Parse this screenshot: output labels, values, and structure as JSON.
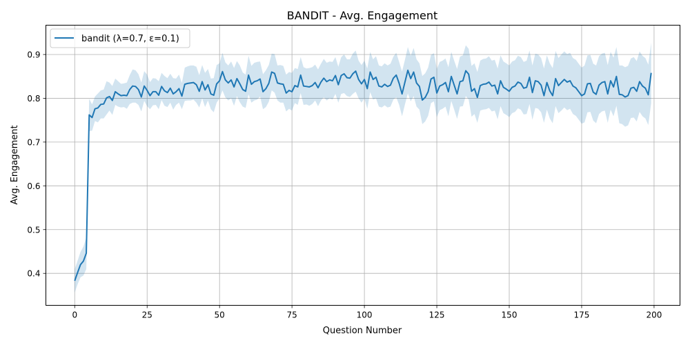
{
  "chart_data": {
    "type": "line",
    "title": "BANDIT - Avg. Engagement",
    "xlabel": "Question Number",
    "ylabel": "Avg. Engagement",
    "xlim": [
      -9.95,
      208.95
    ],
    "ylim": [
      0.327,
      0.967
    ],
    "xticks": [
      0,
      25,
      50,
      75,
      100,
      125,
      150,
      175,
      200
    ],
    "xtick_labels": [
      "0",
      "25",
      "50",
      "75",
      "100",
      "125",
      "150",
      "175",
      "200"
    ],
    "yticks": [
      0.4,
      0.5,
      0.6,
      0.7,
      0.8,
      0.9
    ],
    "ytick_labels": [
      "0.4",
      "0.5",
      "0.6",
      "0.7",
      "0.8",
      "0.9"
    ],
    "grid": true,
    "legend_position": "upper-left",
    "series": [
      {
        "name": "bandit (λ=0.7, ε=0.1)",
        "color": "#1f77b4",
        "band_color": "#1f77b4",
        "band_opacity": 0.2,
        "x_start": 0,
        "x_step": 1,
        "values": [
          0.383,
          0.402,
          0.42,
          0.428,
          0.446,
          0.762,
          0.756,
          0.776,
          0.778,
          0.786,
          0.787,
          0.801,
          0.804,
          0.795,
          0.815,
          0.81,
          0.806,
          0.807,
          0.806,
          0.82,
          0.828,
          0.827,
          0.82,
          0.803,
          0.828,
          0.818,
          0.806,
          0.815,
          0.815,
          0.807,
          0.827,
          0.817,
          0.813,
          0.823,
          0.81,
          0.815,
          0.822,
          0.805,
          0.832,
          0.834,
          0.835,
          0.836,
          0.831,
          0.816,
          0.838,
          0.819,
          0.831,
          0.81,
          0.807,
          0.833,
          0.84,
          0.861,
          0.842,
          0.835,
          0.842,
          0.826,
          0.845,
          0.833,
          0.82,
          0.816,
          0.853,
          0.832,
          0.838,
          0.84,
          0.844,
          0.815,
          0.822,
          0.834,
          0.86,
          0.857,
          0.835,
          0.833,
          0.832,
          0.812,
          0.818,
          0.815,
          0.829,
          0.826,
          0.853,
          0.828,
          0.827,
          0.826,
          0.829,
          0.836,
          0.824,
          0.837,
          0.846,
          0.838,
          0.842,
          0.84,
          0.852,
          0.831,
          0.852,
          0.856,
          0.847,
          0.846,
          0.856,
          0.862,
          0.843,
          0.833,
          0.843,
          0.822,
          0.86,
          0.843,
          0.848,
          0.828,
          0.826,
          0.832,
          0.827,
          0.83,
          0.846,
          0.853,
          0.834,
          0.81,
          0.837,
          0.864,
          0.845,
          0.86,
          0.835,
          0.827,
          0.796,
          0.802,
          0.815,
          0.844,
          0.848,
          0.812,
          0.828,
          0.831,
          0.836,
          0.815,
          0.85,
          0.83,
          0.81,
          0.838,
          0.84,
          0.863,
          0.855,
          0.816,
          0.822,
          0.802,
          0.829,
          0.832,
          0.833,
          0.837,
          0.828,
          0.83,
          0.81,
          0.84,
          0.825,
          0.821,
          0.816,
          0.825,
          0.828,
          0.837,
          0.834,
          0.823,
          0.825,
          0.848,
          0.813,
          0.84,
          0.838,
          0.83,
          0.806,
          0.836,
          0.817,
          0.806,
          0.845,
          0.829,
          0.836,
          0.843,
          0.837,
          0.84,
          0.828,
          0.824,
          0.815,
          0.806,
          0.81,
          0.833,
          0.834,
          0.814,
          0.809,
          0.83,
          0.836,
          0.838,
          0.81,
          0.84,
          0.826,
          0.85,
          0.809,
          0.808,
          0.803,
          0.806,
          0.823,
          0.825,
          0.816,
          0.838,
          0.828,
          0.823,
          0.808,
          0.858
        ],
        "lower": [
          0.356,
          0.375,
          0.391,
          0.395,
          0.41,
          0.725,
          0.726,
          0.748,
          0.745,
          0.754,
          0.754,
          0.763,
          0.772,
          0.762,
          0.785,
          0.781,
          0.779,
          0.78,
          0.776,
          0.787,
          0.79,
          0.79,
          0.785,
          0.77,
          0.794,
          0.782,
          0.775,
          0.784,
          0.785,
          0.775,
          0.796,
          0.783,
          0.78,
          0.79,
          0.774,
          0.785,
          0.79,
          0.775,
          0.794,
          0.795,
          0.795,
          0.797,
          0.79,
          0.779,
          0.8,
          0.78,
          0.795,
          0.775,
          0.768,
          0.79,
          0.8,
          0.818,
          0.802,
          0.795,
          0.8,
          0.783,
          0.805,
          0.791,
          0.781,
          0.778,
          0.809,
          0.79,
          0.795,
          0.797,
          0.804,
          0.775,
          0.78,
          0.792,
          0.818,
          0.813,
          0.795,
          0.79,
          0.79,
          0.77,
          0.776,
          0.772,
          0.789,
          0.785,
          0.812,
          0.785,
          0.786,
          0.783,
          0.787,
          0.795,
          0.782,
          0.795,
          0.802,
          0.795,
          0.8,
          0.797,
          0.81,
          0.79,
          0.81,
          0.812,
          0.805,
          0.803,
          0.81,
          0.815,
          0.8,
          0.79,
          0.8,
          0.776,
          0.814,
          0.797,
          0.8,
          0.781,
          0.779,
          0.784,
          0.779,
          0.781,
          0.797,
          0.802,
          0.785,
          0.759,
          0.786,
          0.811,
          0.793,
          0.805,
          0.781,
          0.774,
          0.741,
          0.747,
          0.76,
          0.789,
          0.793,
          0.757,
          0.773,
          0.776,
          0.781,
          0.759,
          0.794,
          0.774,
          0.753,
          0.781,
          0.782,
          0.805,
          0.797,
          0.758,
          0.764,
          0.744,
          0.772,
          0.774,
          0.775,
          0.778,
          0.77,
          0.772,
          0.752,
          0.782,
          0.766,
          0.762,
          0.757,
          0.766,
          0.769,
          0.777,
          0.774,
          0.763,
          0.764,
          0.787,
          0.751,
          0.778,
          0.776,
          0.768,
          0.744,
          0.774,
          0.754,
          0.743,
          0.782,
          0.766,
          0.772,
          0.779,
          0.773,
          0.776,
          0.764,
          0.76,
          0.751,
          0.742,
          0.745,
          0.768,
          0.769,
          0.749,
          0.743,
          0.764,
          0.77,
          0.772,
          0.744,
          0.774,
          0.759,
          0.783,
          0.743,
          0.741,
          0.735,
          0.738,
          0.755,
          0.756,
          0.747,
          0.769,
          0.759,
          0.754,
          0.739,
          0.789
        ],
        "upper": [
          0.41,
          0.429,
          0.449,
          0.461,
          0.482,
          0.799,
          0.786,
          0.804,
          0.811,
          0.818,
          0.82,
          0.839,
          0.836,
          0.828,
          0.845,
          0.839,
          0.833,
          0.834,
          0.836,
          0.853,
          0.866,
          0.864,
          0.855,
          0.836,
          0.862,
          0.854,
          0.837,
          0.846,
          0.845,
          0.839,
          0.858,
          0.851,
          0.846,
          0.856,
          0.846,
          0.845,
          0.854,
          0.835,
          0.87,
          0.873,
          0.875,
          0.875,
          0.872,
          0.853,
          0.876,
          0.858,
          0.867,
          0.845,
          0.846,
          0.876,
          0.88,
          0.904,
          0.882,
          0.875,
          0.884,
          0.869,
          0.885,
          0.875,
          0.859,
          0.854,
          0.897,
          0.874,
          0.881,
          0.883,
          0.884,
          0.855,
          0.864,
          0.876,
          0.902,
          0.901,
          0.875,
          0.876,
          0.874,
          0.854,
          0.86,
          0.858,
          0.869,
          0.867,
          0.894,
          0.871,
          0.868,
          0.869,
          0.871,
          0.877,
          0.866,
          0.879,
          0.89,
          0.881,
          0.884,
          0.883,
          0.894,
          0.872,
          0.894,
          0.9,
          0.889,
          0.889,
          0.902,
          0.909,
          0.886,
          0.876,
          0.886,
          0.868,
          0.906,
          0.889,
          0.896,
          0.875,
          0.873,
          0.88,
          0.875,
          0.879,
          0.895,
          0.904,
          0.883,
          0.861,
          0.888,
          0.917,
          0.897,
          0.915,
          0.889,
          0.88,
          0.851,
          0.857,
          0.87,
          0.899,
          0.903,
          0.867,
          0.883,
          0.886,
          0.891,
          0.871,
          0.906,
          0.886,
          0.867,
          0.895,
          0.898,
          0.921,
          0.913,
          0.874,
          0.88,
          0.86,
          0.886,
          0.89,
          0.891,
          0.896,
          0.886,
          0.888,
          0.868,
          0.898,
          0.884,
          0.88,
          0.875,
          0.884,
          0.887,
          0.897,
          0.894,
          0.883,
          0.886,
          0.909,
          0.875,
          0.902,
          0.9,
          0.892,
          0.868,
          0.898,
          0.88,
          0.869,
          0.908,
          0.892,
          0.9,
          0.907,
          0.901,
          0.904,
          0.892,
          0.888,
          0.879,
          0.87,
          0.875,
          0.898,
          0.899,
          0.879,
          0.875,
          0.896,
          0.902,
          0.904,
          0.876,
          0.906,
          0.893,
          0.917,
          0.875,
          0.875,
          0.871,
          0.874,
          0.891,
          0.894,
          0.885,
          0.907,
          0.897,
          0.892,
          0.877,
          0.927
        ]
      }
    ]
  }
}
